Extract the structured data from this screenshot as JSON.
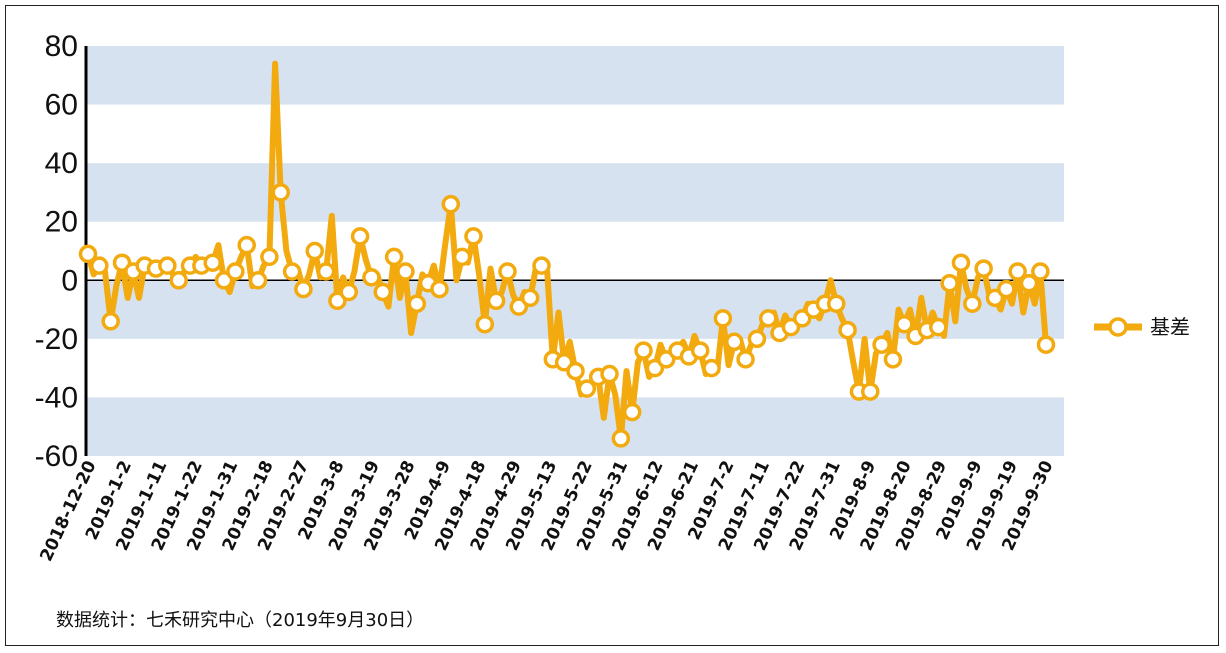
{
  "footer": {
    "source": "数据统计：七禾研究中心（2019年9月30日）"
  },
  "colors": {
    "series": "#F2AA0F",
    "marker_fill": "#FFFFFF",
    "band": "#D6E2EF",
    "axis": "#000000"
  },
  "chart_data": {
    "type": "line",
    "title": "",
    "xlabel": "",
    "ylabel": "",
    "ylim": [
      -60,
      80
    ],
    "yticks": [
      80,
      60,
      40,
      20,
      0,
      -20,
      -40,
      -60
    ],
    "grid": "alternating horizontal bands",
    "legend_position": "right",
    "x_tick_labels": [
      "2018-12-20",
      "2019-1-2",
      "2019-1-11",
      "2019-1-22",
      "2019-1-31",
      "2019-2-18",
      "2019-2-27",
      "2019-3-8",
      "2019-3-19",
      "2019-3-28",
      "2019-4-9",
      "2019-4-18",
      "2019-4-29",
      "2019-5-13",
      "2019-5-22",
      "2019-5-31",
      "2019-6-12",
      "2019-6-21",
      "2019-7-2",
      "2019-7-11",
      "2019-7-22",
      "2019-7-31",
      "2019-8-9",
      "2019-8-20",
      "2019-8-29",
      "2019-9-9",
      "2019-9-19",
      "2019-9-30"
    ],
    "series": [
      {
        "name": "基差",
        "values": [
          9,
          2,
          5,
          3,
          -14,
          -2,
          6,
          -6,
          3,
          -6,
          5,
          5,
          4,
          4,
          5,
          2,
          0,
          3,
          5,
          8,
          5,
          7,
          6,
          12,
          0,
          -4,
          3,
          8,
          12,
          -2,
          0,
          5,
          8,
          74,
          30,
          10,
          3,
          4,
          -3,
          2,
          10,
          1,
          3,
          22,
          -7,
          1,
          -4,
          3,
          15,
          7,
          1,
          2,
          -4,
          -9,
          8,
          -6,
          3,
          -18,
          -8,
          2,
          -1,
          5,
          -3,
          12,
          26,
          0,
          8,
          6,
          15,
          2,
          -15,
          4,
          -7,
          -4,
          3,
          -5,
          -9,
          -4,
          -6,
          4,
          5,
          3,
          -27,
          -11,
          -28,
          -21,
          -31,
          -39,
          -37,
          -35,
          -33,
          -47,
          -32,
          -39,
          -54,
          -31,
          -45,
          -28,
          -24,
          -33,
          -30,
          -22,
          -27,
          -25,
          -24,
          -21,
          -26,
          -19,
          -24,
          -32,
          -30,
          -31,
          -13,
          -29,
          -21,
          -20,
          -27,
          -22,
          -20,
          -15,
          -13,
          -11,
          -18,
          -12,
          -16,
          -15,
          -13,
          -8,
          -10,
          -13,
          -8,
          0,
          -8,
          -13,
          -17,
          -28,
          -38,
          -20,
          -38,
          -25,
          -22,
          -18,
          -27,
          -10,
          -15,
          -10,
          -19,
          -6,
          -17,
          -11,
          -16,
          -19,
          -1,
          -14,
          6,
          -3,
          -8,
          1,
          4,
          -5,
          -6,
          -10,
          -3,
          -8,
          3,
          -11,
          -1,
          -8,
          3,
          -22
        ]
      }
    ]
  }
}
